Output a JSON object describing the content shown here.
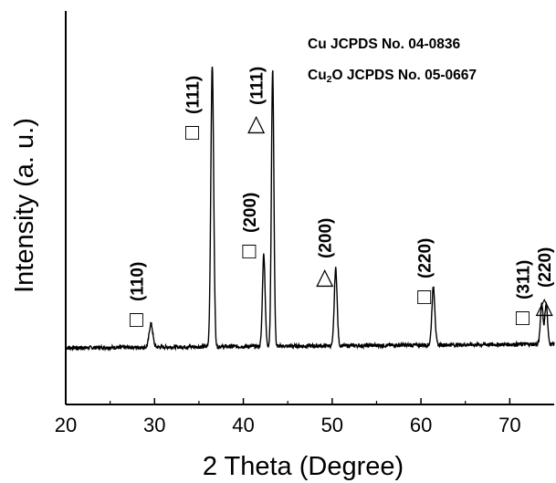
{
  "chart_data": {
    "type": "line",
    "title": "",
    "xlabel": "2 Theta (Degree)",
    "ylabel": "Intensity (a. u.)",
    "xlim": [
      20,
      75
    ],
    "x_ticks": [
      20,
      30,
      40,
      50,
      60,
      70
    ],
    "y_ticks": [],
    "grid": false,
    "legend_position": "top-right",
    "legend": [
      {
        "marker": "square",
        "label": "Cu JCPDS No. 04-0836"
      },
      {
        "marker": "triangle",
        "label": "Cu2O JCPDS No. 05-0667"
      }
    ],
    "series": [
      {
        "color": "#000000",
        "baseline": 0.0,
        "peaks": [
          {
            "x": 29.6,
            "y": 0.11,
            "width": 0.2
          },
          {
            "x": 36.5,
            "y": 1.31,
            "width": 0.16
          },
          {
            "x": 42.3,
            "y": 0.43,
            "width": 0.15
          },
          {
            "x": 43.3,
            "y": 1.29,
            "width": 0.14
          },
          {
            "x": 50.4,
            "y": 0.36,
            "width": 0.16
          },
          {
            "x": 61.4,
            "y": 0.27,
            "width": 0.17
          },
          {
            "x": 73.6,
            "y": 0.19,
            "width": 0.15
          },
          {
            "x": 74.1,
            "y": 0.19,
            "width": 0.15
          }
        ]
      }
    ],
    "annotations": [
      {
        "x": 29.6,
        "marker": "square",
        "glyph": "□",
        "hkl": "(110)"
      },
      {
        "x": 36.5,
        "marker": "square",
        "glyph": "□",
        "hkl": "(111)"
      },
      {
        "x": 42.3,
        "marker": "square",
        "glyph": "□",
        "hkl": "(200)"
      },
      {
        "x": 43.3,
        "marker": "triangle",
        "glyph": "△",
        "hkl": "(111)"
      },
      {
        "x": 50.4,
        "marker": "triangle",
        "glyph": "△",
        "hkl": "(200)"
      },
      {
        "x": 61.4,
        "marker": "square",
        "glyph": "□",
        "hkl": "(220)"
      },
      {
        "x": 73.6,
        "marker": "square",
        "glyph": "□",
        "hkl": "(311)"
      },
      {
        "x": 74.1,
        "marker": "triangle",
        "glyph": "△",
        "hkl": "(220)"
      }
    ]
  }
}
